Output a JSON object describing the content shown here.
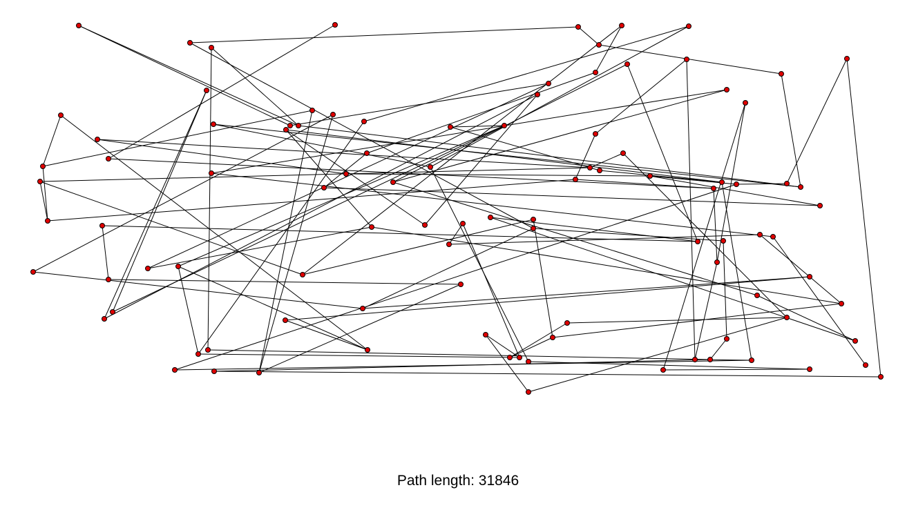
{
  "status": {
    "label": "Path length:",
    "value": "31846"
  },
  "colors": {
    "background": "#ffffff",
    "edge": "#000000",
    "city_fill": "#e00000",
    "city_outline": "#000000"
  },
  "icons": {
    "city": "red-dot"
  }
}
